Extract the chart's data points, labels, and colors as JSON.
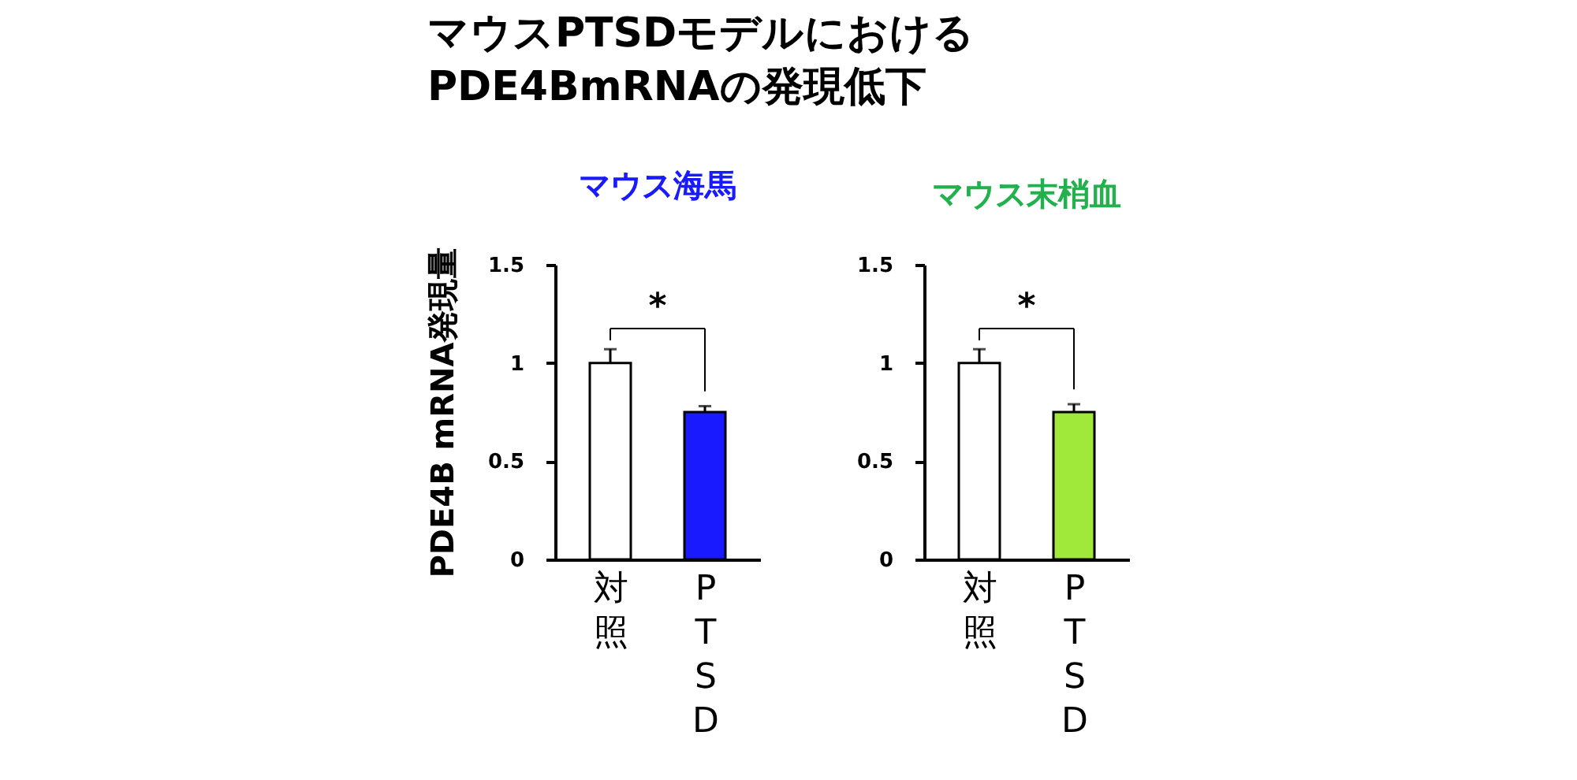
{
  "chart_data": [
    {
      "type": "bar",
      "title": "マウスPTSDモデルにおける\nPDE4BmRNAの発現低下",
      "subtitle": "マウス海馬",
      "ylabel": "PDE4B mRNA発現量",
      "categories": [
        "対照",
        "PTSD"
      ],
      "values": [
        1.0,
        0.75
      ],
      "colors": [
        "#ffffff",
        "#1a1aff"
      ],
      "errors": [
        0.07,
        0.03
      ],
      "ylim": [
        0,
        1.5
      ],
      "yticks": [
        0,
        0.5,
        1,
        1.5
      ],
      "grid": false,
      "annotations": [
        "*"
      ]
    },
    {
      "type": "bar",
      "subtitle": "マウス末梢血",
      "categories": [
        "対照",
        "PTSD"
      ],
      "values": [
        1.0,
        0.75
      ],
      "colors": [
        "#ffffff",
        "#a0e83a"
      ],
      "errors": [
        0.07,
        0.04
      ],
      "ylim": [
        0,
        1.5
      ],
      "yticks": [
        0,
        0.5,
        1,
        1.5
      ],
      "grid": false,
      "annotations": [
        "*"
      ]
    }
  ]
}
